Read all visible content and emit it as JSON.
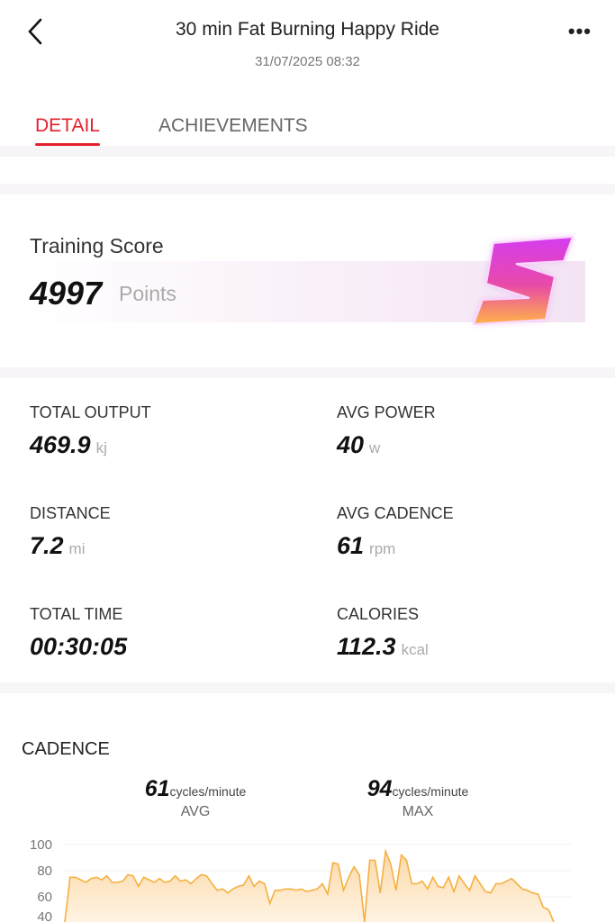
{
  "header": {
    "title": "30 min Fat Burning Happy Ride",
    "date": "31/07/2025 08:32",
    "back_icon": "chevron-left-icon",
    "more_icon": "more-horizontal-icon"
  },
  "tabs": [
    {
      "label": "DETAIL",
      "active": true
    },
    {
      "label": "ACHIEVEMENTS",
      "active": false
    }
  ],
  "training_score": {
    "label": "Training Score",
    "value": "4997",
    "unit": "Points",
    "badge": "S"
  },
  "stats": [
    {
      "label": "TOTAL OUTPUT",
      "value": "469.9",
      "unit": "kj"
    },
    {
      "label": "AVG POWER",
      "value": "40",
      "unit": "w"
    },
    {
      "label": "DISTANCE",
      "value": "7.2",
      "unit": "mi"
    },
    {
      "label": "AVG CADENCE",
      "value": "61",
      "unit": "rpm"
    },
    {
      "label": "TOTAL TIME",
      "value": "00:30:05",
      "unit": ""
    },
    {
      "label": "CALORIES",
      "value": "112.3",
      "unit": "kcal"
    }
  ],
  "cadence": {
    "title": "CADENCE",
    "avg": {
      "value": "61",
      "unit": "cycles/minute",
      "label": "AVG"
    },
    "max": {
      "value": "94",
      "unit": "cycles/minute",
      "label": "MAX"
    }
  },
  "chart_data": {
    "type": "area",
    "title": "CADENCE",
    "y_ticks": [
      "100",
      "80",
      "60",
      "40"
    ],
    "ylim": [
      40,
      100
    ],
    "grid": true,
    "color": "#f5b041",
    "values": [
      0,
      75,
      75,
      73,
      71,
      74,
      75,
      73,
      76,
      71,
      71,
      72,
      77,
      76,
      68,
      75,
      73,
      71,
      74,
      71,
      72,
      76,
      72,
      73,
      70,
      74,
      77,
      76,
      70,
      65,
      66,
      63,
      66,
      68,
      69,
      76,
      68,
      72,
      70,
      55,
      65,
      65,
      66,
      66,
      65,
      66,
      64,
      65,
      66,
      70,
      62,
      86,
      85,
      65,
      75,
      83,
      77,
      0,
      88,
      88,
      63,
      95,
      85,
      65,
      92,
      88,
      70,
      70,
      72,
      66,
      75,
      68,
      67,
      75,
      64,
      76,
      70,
      65,
      76,
      70,
      64,
      63,
      70,
      70,
      72,
      74,
      70,
      66,
      65,
      63,
      62,
      52,
      50,
      40
    ]
  }
}
